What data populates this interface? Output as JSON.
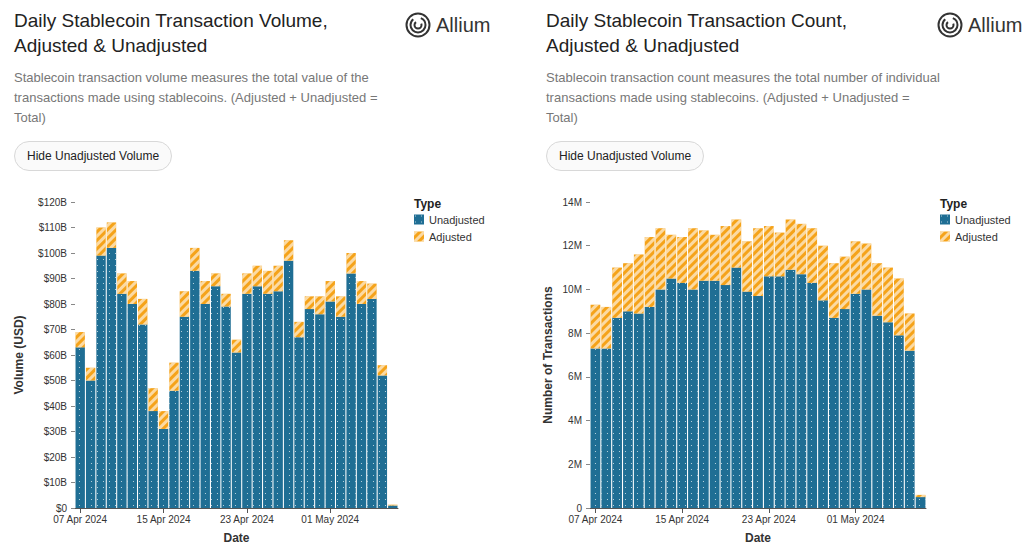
{
  "chart_data": [
    {
      "type": "bar",
      "title": "Daily Stablecoin Transaction Volume, Adjusted & Unadjusted",
      "subtitle": "Stablecoin transaction volume measures the total value of the transactions made using stablecoins. (Adjusted + Unadjusted = Total)",
      "button": "Hide Unadjusted Volume",
      "brand": "Allium",
      "legend_title": "Type",
      "x_label": "Date",
      "y_label": "Volume (USD)",
      "categories": [
        "07 Apr 2024",
        null,
        null,
        null,
        null,
        null,
        null,
        null,
        "15 Apr 2024",
        null,
        null,
        null,
        null,
        null,
        null,
        null,
        "23 Apr 2024",
        null,
        null,
        null,
        null,
        null,
        null,
        null,
        "01 May 2024",
        null,
        null,
        null,
        null,
        null,
        null
      ],
      "series": [
        {
          "name": "Unadjusted",
          "color": "#1f6e94",
          "values": [
            63000000000.0,
            50000000000.0,
            99000000000.0,
            102000000000.0,
            84000000000.0,
            80000000000.0,
            72000000000.0,
            38000000000.0,
            31000000000.0,
            46000000000.0,
            75000000000.0,
            93000000000.0,
            80000000000.0,
            87000000000.0,
            79000000000.0,
            61000000000.0,
            84000000000.0,
            87000000000.0,
            84000000000.0,
            85000000000.0,
            97000000000.0,
            67000000000.0,
            78000000000.0,
            76000000000.0,
            81000000000.0,
            75000000000.0,
            92000000000.0,
            80000000000.0,
            82000000000.0,
            52000000000.0,
            1000000000.0
          ]
        },
        {
          "name": "Adjusted",
          "color": "#f5a31a",
          "values": [
            6000000000.0,
            5000000000.0,
            11000000000.0,
            10000000000.0,
            8000000000.0,
            9000000000.0,
            10000000000.0,
            9000000000.0,
            7000000000.0,
            11000000000.0,
            10000000000.0,
            9000000000.0,
            9000000000.0,
            5000000000.0,
            5000000000.0,
            5000000000.0,
            8000000000.0,
            8000000000.0,
            9000000000.0,
            10000000000.0,
            8000000000.0,
            6000000000.0,
            5000000000.0,
            7000000000.0,
            8000000000.0,
            8000000000.0,
            8000000000.0,
            9000000000.0,
            6000000000.0,
            4000000000.0,
            300000000.0
          ]
        }
      ],
      "ylim": [
        0,
        120000000000.0
      ],
      "yticks": [
        {
          "value": 0,
          "label": "$0"
        },
        {
          "value": 10000000000.0,
          "label": "$10B"
        },
        {
          "value": 20000000000.0,
          "label": "$20B"
        },
        {
          "value": 30000000000.0,
          "label": "$30B"
        },
        {
          "value": 40000000000.0,
          "label": "$40B"
        },
        {
          "value": 50000000000.0,
          "label": "$50B"
        },
        {
          "value": 60000000000.0,
          "label": "$60B"
        },
        {
          "value": 70000000000.0,
          "label": "$70B"
        },
        {
          "value": 80000000000.0,
          "label": "$80B"
        },
        {
          "value": 90000000000.0,
          "label": "$90B"
        },
        {
          "value": 100000000000.0,
          "label": "$100B"
        },
        {
          "value": 110000000000.0,
          "label": "$110B"
        },
        {
          "value": 120000000000.0,
          "label": "$120B"
        }
      ],
      "stacked": true,
      "grid": false,
      "legend": "right"
    },
    {
      "type": "bar",
      "title": "Daily Stablecoin Transaction Count, Adjusted & Unadjusted",
      "subtitle": "Stablecoin transaction count measures the total number of individual transactions made using stablecoins. (Adjusted + Unadjusted = Total)",
      "button": "Hide Unadjusted Volume",
      "brand": "Allium",
      "legend_title": "Type",
      "x_label": "Date",
      "y_label": "Number of Transactions",
      "categories": [
        "07 Apr 2024",
        null,
        null,
        null,
        null,
        null,
        null,
        null,
        "15 Apr 2024",
        null,
        null,
        null,
        null,
        null,
        null,
        null,
        "23 Apr 2024",
        null,
        null,
        null,
        null,
        null,
        null,
        null,
        "01 May 2024",
        null,
        null,
        null,
        null,
        null,
        null
      ],
      "series": [
        {
          "name": "Unadjusted",
          "color": "#1f6e94",
          "values": [
            7300000.0,
            7300000.0,
            8700000.0,
            9000000.0,
            8900000.0,
            9200000.0,
            10000000.0,
            10500000.0,
            10300000.0,
            10000000.0,
            10400000.0,
            10400000.0,
            10200000.0,
            11000000.0,
            9900000.0,
            9700000.0,
            10600000.0,
            10600000.0,
            10900000.0,
            10700000.0,
            10300000.0,
            9500000.0,
            8700000.0,
            9100000.0,
            9800000.0,
            10000000.0,
            8800000.0,
            8500000.0,
            7900000.0,
            7200000.0,
            500000.0
          ]
        },
        {
          "name": "Adjusted",
          "color": "#f5a31a",
          "values": [
            2000000.0,
            1900000.0,
            2300000.0,
            2200000.0,
            2700000.0,
            3200000.0,
            2800000.0,
            2000000.0,
            2100000.0,
            2800000.0,
            2300000.0,
            2100000.0,
            2700000.0,
            2200000.0,
            2300000.0,
            3100000.0,
            2300000.0,
            2000000.0,
            2300000.0,
            2300000.0,
            2500000.0,
            2500000.0,
            2500000.0,
            2400000.0,
            2400000.0,
            2100000.0,
            2400000.0,
            2500000.0,
            2600000.0,
            1700000.0,
            100000.0
          ]
        }
      ],
      "ylim": [
        0,
        14000000.0
      ],
      "yticks": [
        0,
        {
          "value": 2000000.0,
          "label": "2M"
        },
        {
          "value": 4000000.0,
          "label": "4M"
        },
        {
          "value": 6000000.0,
          "label": "6M"
        },
        {
          "value": 8000000.0,
          "label": "8M"
        },
        {
          "value": 10000000.0,
          "label": "10M"
        },
        {
          "value": 12000000.0,
          "label": "12M"
        },
        {
          "value": 14000000.0,
          "label": "14M"
        }
      ],
      "stacked": true,
      "grid": false,
      "legend": "right"
    }
  ]
}
